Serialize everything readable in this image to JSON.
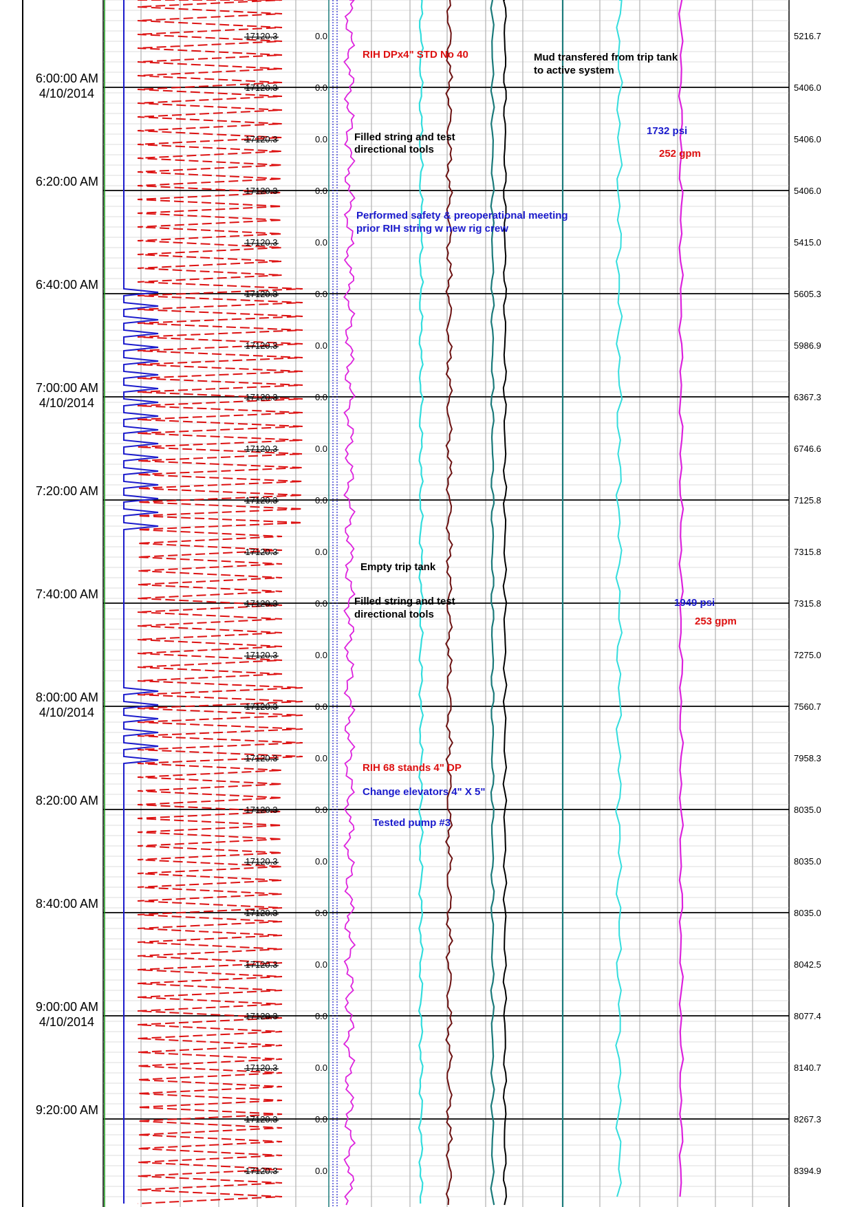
{
  "chart_data": {
    "type": "line",
    "orientation": "vertical-time-log",
    "time_rows": [
      {
        "time": "6:00:00 AM",
        "date": "4/10/2014"
      },
      {
        "time": "6:20:00 AM",
        "date": ""
      },
      {
        "time": "6:40:00 AM",
        "date": ""
      },
      {
        "time": "7:00:00 AM",
        "date": "4/10/2014"
      },
      {
        "time": "7:20:00 AM",
        "date": ""
      },
      {
        "time": "7:40:00 AM",
        "date": ""
      },
      {
        "time": "8:00:00 AM",
        "date": "4/10/2014"
      },
      {
        "time": "8:20:00 AM",
        "date": ""
      },
      {
        "time": "8:40:00 AM",
        "date": ""
      },
      {
        "time": "9:00:00 AM",
        "date": "4/10/2014"
      },
      {
        "time": "9:20:00 AM",
        "date": ""
      }
    ],
    "interval_values": [
      "17120.3",
      "17120.3",
      "17120.3",
      "17120.3",
      "17120.3",
      "17120.3",
      "17120.3",
      "17120.3",
      "17120.3",
      "17120.3",
      "17120.3",
      "17120.3",
      "17120.3",
      "17120.3",
      "17120.3",
      "17120.3",
      "17120.3",
      "17120.3",
      "17120.3",
      "17120.3",
      "17120.3",
      "17120.3",
      "17120.3"
    ],
    "zero_values": [
      "0.0",
      "0.0",
      "0.0",
      "0.0",
      "0.0",
      "0.0",
      "0.0",
      "0.0",
      "0.0",
      "0.0",
      "0.0",
      "0.0",
      "0.0",
      "0.0",
      "0.0",
      "0.0",
      "0.0",
      "0.0",
      "0.0",
      "0.0",
      "0.0",
      "0.0",
      "0.0"
    ],
    "depth_values": [
      "5216.7",
      "5406.0",
      "5406.0",
      "5406.0",
      "5415.0",
      "5605.3",
      "5986.9",
      "6367.3",
      "6746.6",
      "7125.8",
      "7315.8",
      "7315.8",
      "7275.0",
      "7560.7",
      "7958.3",
      "8035.0",
      "8035.0",
      "8035.0",
      "8042.5",
      "8077.4",
      "8140.7",
      "8267.3",
      "8394.9"
    ],
    "annotations": [
      {
        "text": "RIH DPx4\" STD No 40",
        "color": "#dd1111"
      },
      {
        "text": "Mud transfered from trip tank",
        "color": "#000000"
      },
      {
        "text": " to active system",
        "color": "#000000"
      },
      {
        "text": "Filled string and test",
        "color": "#000000"
      },
      {
        "text": "directional tools",
        "color": "#000000"
      },
      {
        "text": "1732 psi",
        "color": "#1a1acc"
      },
      {
        "text": "252 gpm",
        "color": "#dd1111"
      },
      {
        "text": "Performed safety & preoperational meeting",
        "color": "#1a1acc"
      },
      {
        "text": "prior RIH string w new rig crew",
        "color": "#1a1acc"
      },
      {
        "text": "Empty trip tank",
        "color": "#000000"
      },
      {
        "text": "Filled string and test",
        "color": "#000000"
      },
      {
        "text": "directional tools",
        "color": "#000000"
      },
      {
        "text": "1949 psi",
        "color": "#1a1acc"
      },
      {
        "text": "253 gpm",
        "color": "#dd1111"
      },
      {
        "text": "RIH 68 stands 4\" DP",
        "color": "#dd1111"
      },
      {
        "text": "Change elevators 4\" X 5\"",
        "color": "#1a1acc"
      },
      {
        "text": "Tested pump #3",
        "color": "#1a1acc"
      }
    ],
    "series": [
      {
        "color": "#1a1acc",
        "style": "solid",
        "description_key": "blue"
      },
      {
        "color": "#dd1111",
        "style": "dashed",
        "description_key": "red-dashed"
      },
      {
        "color": "#dd22dd",
        "style": "solid",
        "description_key": "magenta"
      },
      {
        "color": "#33dddd",
        "style": "solid",
        "description_key": "cyan"
      },
      {
        "color": "#6b1010",
        "style": "solid",
        "description_key": "dark-red"
      },
      {
        "color": "#1a7a7a",
        "style": "solid",
        "description_key": "teal"
      },
      {
        "color": "#000000",
        "style": "solid",
        "description_key": "black"
      }
    ],
    "grid": true
  }
}
